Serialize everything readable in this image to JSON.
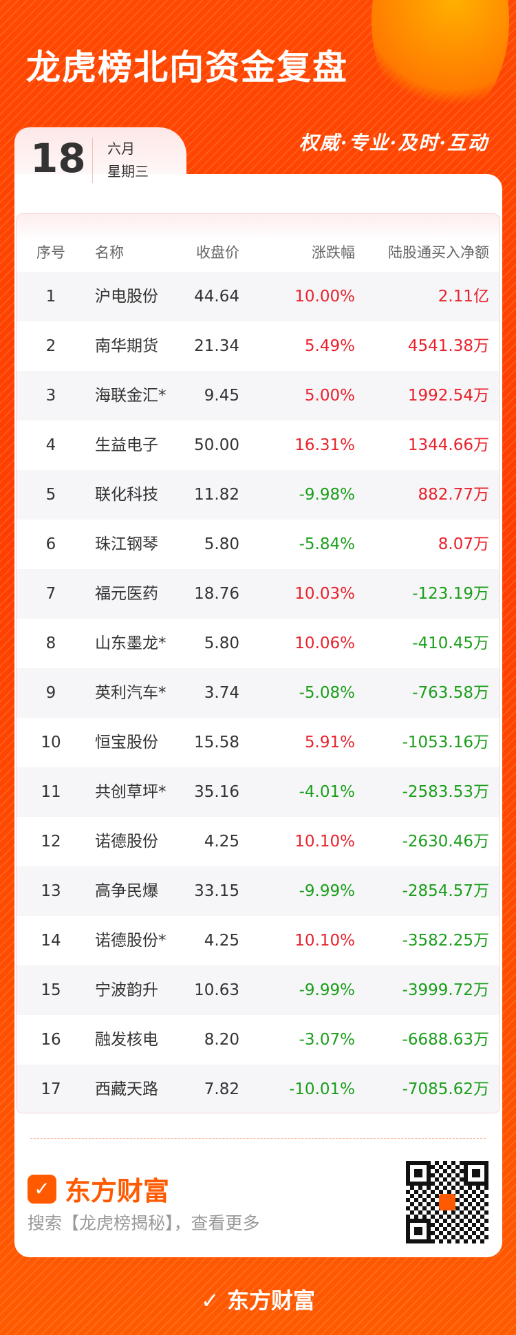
{
  "header": {
    "title": "龙虎榜北向资金复盘",
    "slogan": "权威·专业·及时·互动"
  },
  "date": {
    "day": "18",
    "month": "六月",
    "weekday": "星期三"
  },
  "table": {
    "columns": [
      "序号",
      "名称",
      "收盘价",
      "涨跌幅",
      "陆股通买入净额"
    ],
    "rows": [
      {
        "no": "1",
        "name": "沪电股份",
        "close": "44.64",
        "change": "10.00%",
        "net": "2.11亿"
      },
      {
        "no": "2",
        "name": "南华期货",
        "close": "21.34",
        "change": "5.49%",
        "net": "4541.38万"
      },
      {
        "no": "3",
        "name": "海联金汇*",
        "close": "9.45",
        "change": "5.00%",
        "net": "1992.54万"
      },
      {
        "no": "4",
        "name": "生益电子",
        "close": "50.00",
        "change": "16.31%",
        "net": "1344.66万"
      },
      {
        "no": "5",
        "name": "联化科技",
        "close": "11.82",
        "change": "-9.98%",
        "net": "882.77万"
      },
      {
        "no": "6",
        "name": "珠江钢琴",
        "close": "5.80",
        "change": "-5.84%",
        "net": "8.07万"
      },
      {
        "no": "7",
        "name": "福元医药",
        "close": "18.76",
        "change": "10.03%",
        "net": "-123.19万"
      },
      {
        "no": "8",
        "name": "山东墨龙*",
        "close": "5.80",
        "change": "10.06%",
        "net": "-410.45万"
      },
      {
        "no": "9",
        "name": "英利汽车*",
        "close": "3.74",
        "change": "-5.08%",
        "net": "-763.58万"
      },
      {
        "no": "10",
        "name": "恒宝股份",
        "close": "15.58",
        "change": "5.91%",
        "net": "-1053.16万"
      },
      {
        "no": "11",
        "name": "共创草坪*",
        "close": "35.16",
        "change": "-4.01%",
        "net": "-2583.53万"
      },
      {
        "no": "12",
        "name": "诺德股份",
        "close": "4.25",
        "change": "10.10%",
        "net": "-2630.46万"
      },
      {
        "no": "13",
        "name": "高争民爆",
        "close": "33.15",
        "change": "-9.99%",
        "net": "-2854.57万"
      },
      {
        "no": "14",
        "name": "诺德股份*",
        "close": "4.25",
        "change": "10.10%",
        "net": "-3582.25万"
      },
      {
        "no": "15",
        "name": "宁波韵升",
        "close": "10.63",
        "change": "-9.99%",
        "net": "-3999.72万"
      },
      {
        "no": "16",
        "name": "融发核电",
        "close": "8.20",
        "change": "-3.07%",
        "net": "-6688.63万"
      },
      {
        "no": "17",
        "name": "西藏天路",
        "close": "7.82",
        "change": "-10.01%",
        "net": "-7085.62万"
      }
    ]
  },
  "footer": {
    "brand": "东方财富",
    "search_hint": "搜索【龙虎榜揭秘】，查看更多",
    "bottom_brand": "东方财富"
  },
  "colors": {
    "up": "#e8222c",
    "down": "#1a9e1a",
    "brand": "#ff5a00"
  }
}
